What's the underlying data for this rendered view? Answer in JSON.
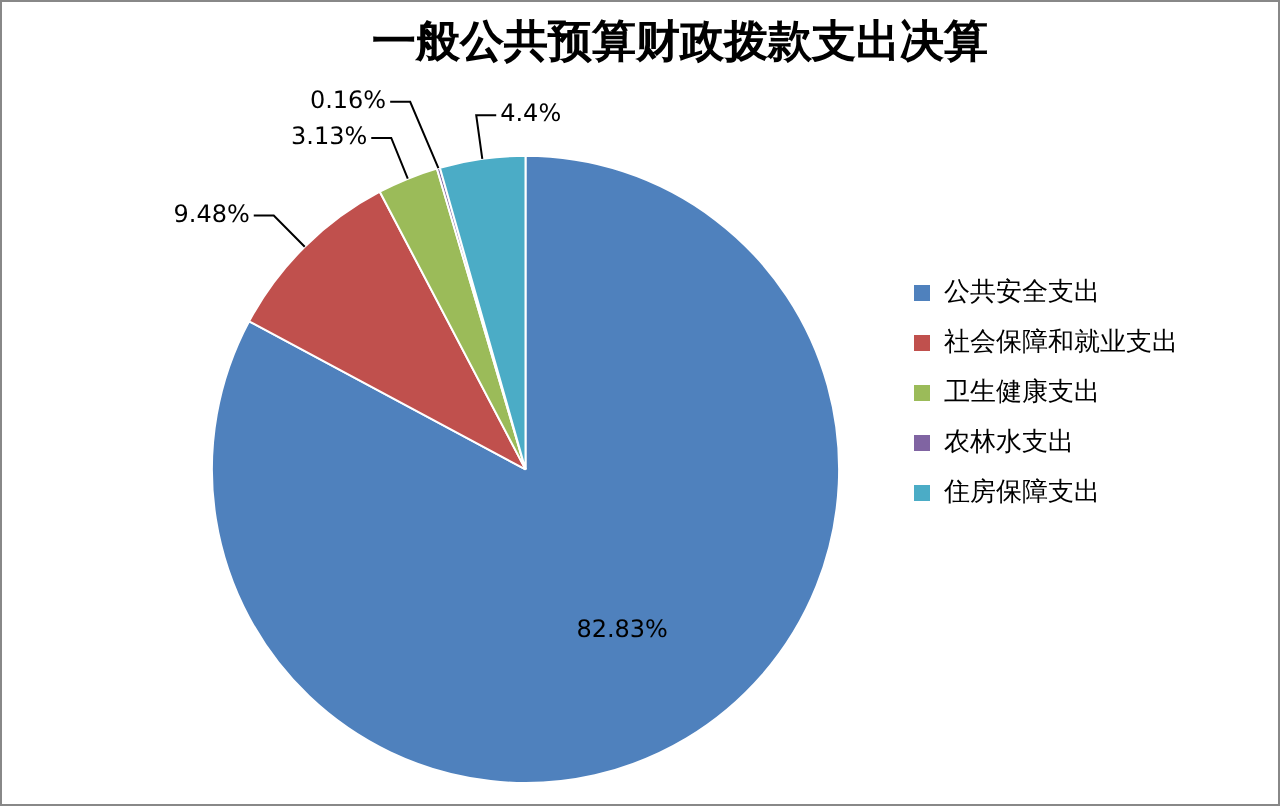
{
  "chart_data": {
    "type": "pie",
    "title": "一般公共预算财政拨款支出决算",
    "categories": [
      "公共安全支出",
      "社会保障和就业支出",
      "卫生健康支出",
      "农林水支出",
      "住房保障支出"
    ],
    "values": [
      82.83,
      9.48,
      3.13,
      0.16,
      4.4
    ],
    "colors": [
      "#4f81bd",
      "#c0504d",
      "#9bbb59",
      "#8064a2",
      "#4bacc6"
    ],
    "value_labels": [
      "82.83%",
      "9.48%",
      "3.13%",
      "0.16%",
      "4.4%"
    ],
    "legend": "right"
  }
}
